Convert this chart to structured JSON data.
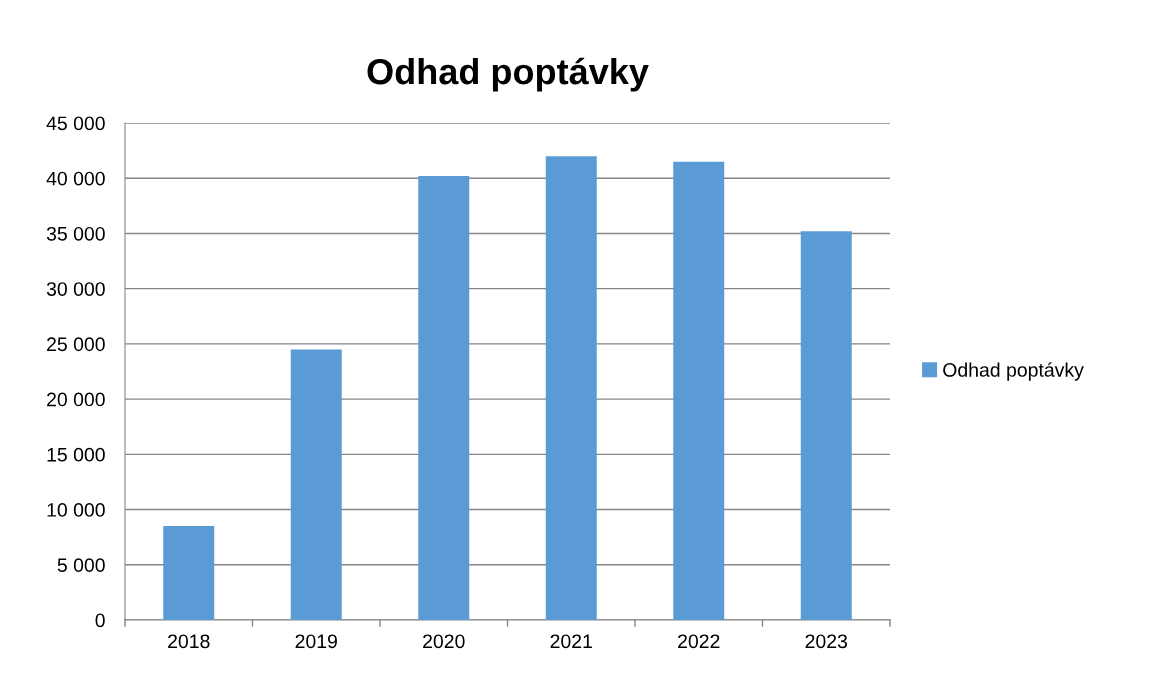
{
  "chart_data": {
    "type": "bar",
    "title": "Odhad poptávky",
    "categories": [
      "2018",
      "2019",
      "2020",
      "2021",
      "2022",
      "2023"
    ],
    "series": [
      {
        "name": "Odhad poptávky",
        "color": "#5b9bd5",
        "values": [
          8500,
          24500,
          40200,
          42000,
          41500,
          35200
        ]
      }
    ],
    "ylim": [
      0,
      45000
    ],
    "yticks": [
      0,
      {
        "value": 5000,
        "label": "5 000"
      },
      {
        "value": 10000,
        "label": "10 000"
      },
      {
        "value": 15000,
        "label": "15 000"
      },
      {
        "value": 20000,
        "label": "20 000"
      },
      {
        "value": 25000,
        "label": "25 000"
      },
      {
        "value": 30000,
        "label": "30 000"
      },
      {
        "value": 35000,
        "label": "35 000"
      },
      {
        "value": 40000,
        "label": "40 000"
      },
      {
        "value": 45000,
        "label": "45 000"
      }
    ],
    "grid": "y",
    "legend": "right"
  }
}
